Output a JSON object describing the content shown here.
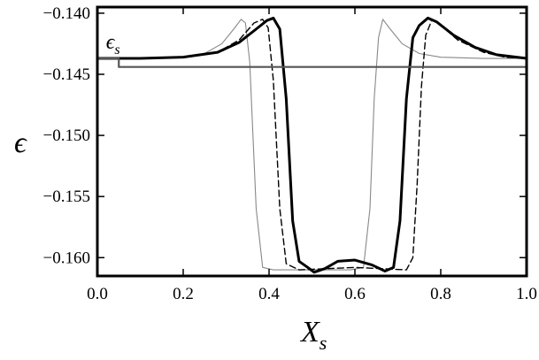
{
  "chart_data": {
    "type": "line",
    "title": "",
    "xlabel": "X",
    "xlabel_sub": "s",
    "ylabel": "ϵ",
    "xlim": [
      0.0,
      1.0
    ],
    "ylim": [
      -0.1615,
      -0.1395
    ],
    "grid": false,
    "legend": "none",
    "x_ticks": [
      0.0,
      0.2,
      0.4,
      0.6,
      0.8,
      1.0
    ],
    "x_tick_labels": [
      "0.0",
      "0.2",
      "0.4",
      "0.6",
      "0.8",
      "1.0"
    ],
    "y_ticks": [
      -0.14,
      -0.145,
      -0.15,
      -0.155,
      -0.16
    ],
    "y_tick_labels": [
      "−0.140",
      "−0.145",
      "−0.150",
      "−0.155",
      "−0.160"
    ],
    "annotations": [
      {
        "text": "ϵ",
        "sub": "s",
        "x": 0.02,
        "y": -0.1429
      }
    ],
    "series": [
      {
        "style": "thin-gray",
        "color": "#888888",
        "points": [
          [
            0.0,
            -0.1437
          ],
          [
            0.1,
            -0.1437
          ],
          [
            0.2,
            -0.1436
          ],
          [
            0.25,
            -0.1433
          ],
          [
            0.29,
            -0.1425
          ],
          [
            0.32,
            -0.1412
          ],
          [
            0.335,
            -0.1405
          ],
          [
            0.345,
            -0.1408
          ],
          [
            0.355,
            -0.144
          ],
          [
            0.37,
            -0.156
          ],
          [
            0.385,
            -0.1608
          ],
          [
            0.41,
            -0.161
          ],
          [
            0.5,
            -0.161
          ],
          [
            0.59,
            -0.161
          ],
          [
            0.62,
            -0.1608
          ],
          [
            0.635,
            -0.156
          ],
          [
            0.645,
            -0.147
          ],
          [
            0.655,
            -0.142
          ],
          [
            0.665,
            -0.1405
          ],
          [
            0.68,
            -0.1412
          ],
          [
            0.71,
            -0.1425
          ],
          [
            0.75,
            -0.1433
          ],
          [
            0.8,
            -0.1436
          ],
          [
            0.9,
            -0.1437
          ],
          [
            1.0,
            -0.1437
          ]
        ]
      },
      {
        "style": "dashed",
        "color": "#000000",
        "points": [
          [
            0.0,
            -0.1437
          ],
          [
            0.1,
            -0.1437
          ],
          [
            0.2,
            -0.1436
          ],
          [
            0.28,
            -0.1432
          ],
          [
            0.33,
            -0.1422
          ],
          [
            0.365,
            -0.1408
          ],
          [
            0.385,
            -0.1405
          ],
          [
            0.398,
            -0.1412
          ],
          [
            0.41,
            -0.1455
          ],
          [
            0.425,
            -0.156
          ],
          [
            0.44,
            -0.1605
          ],
          [
            0.47,
            -0.161
          ],
          [
            0.6,
            -0.1608
          ],
          [
            0.72,
            -0.161
          ],
          [
            0.735,
            -0.16
          ],
          [
            0.745,
            -0.154
          ],
          [
            0.755,
            -0.146
          ],
          [
            0.765,
            -0.1418
          ],
          [
            0.78,
            -0.1405
          ],
          [
            0.8,
            -0.141
          ],
          [
            0.84,
            -0.1422
          ],
          [
            0.9,
            -0.1432
          ],
          [
            0.95,
            -0.1436
          ],
          [
            1.0,
            -0.1437
          ]
        ]
      },
      {
        "style": "thick-black",
        "color": "#000000",
        "points": [
          [
            0.0,
            -0.1437
          ],
          [
            0.1,
            -0.1437
          ],
          [
            0.2,
            -0.1436
          ],
          [
            0.28,
            -0.1432
          ],
          [
            0.33,
            -0.1424
          ],
          [
            0.37,
            -0.1413
          ],
          [
            0.395,
            -0.1406
          ],
          [
            0.41,
            -0.1404
          ],
          [
            0.425,
            -0.1413
          ],
          [
            0.44,
            -0.147
          ],
          [
            0.455,
            -0.157
          ],
          [
            0.47,
            -0.1603
          ],
          [
            0.49,
            -0.1608
          ],
          [
            0.505,
            -0.1612
          ],
          [
            0.53,
            -0.1609
          ],
          [
            0.56,
            -0.1603
          ],
          [
            0.6,
            -0.1602
          ],
          [
            0.64,
            -0.1606
          ],
          [
            0.67,
            -0.1611
          ],
          [
            0.69,
            -0.1608
          ],
          [
            0.705,
            -0.157
          ],
          [
            0.72,
            -0.147
          ],
          [
            0.735,
            -0.142
          ],
          [
            0.75,
            -0.141
          ],
          [
            0.77,
            -0.1404
          ],
          [
            0.79,
            -0.1407
          ],
          [
            0.83,
            -0.1418
          ],
          [
            0.88,
            -0.1428
          ],
          [
            0.93,
            -0.1434
          ],
          [
            1.0,
            -0.1437
          ]
        ]
      },
      {
        "style": "step-gray",
        "color": "#555555",
        "points": [
          [
            0.0,
            -0.1437
          ],
          [
            0.05,
            -0.1437
          ],
          [
            0.05,
            -0.1444
          ],
          [
            1.0,
            -0.1444
          ]
        ]
      }
    ]
  }
}
